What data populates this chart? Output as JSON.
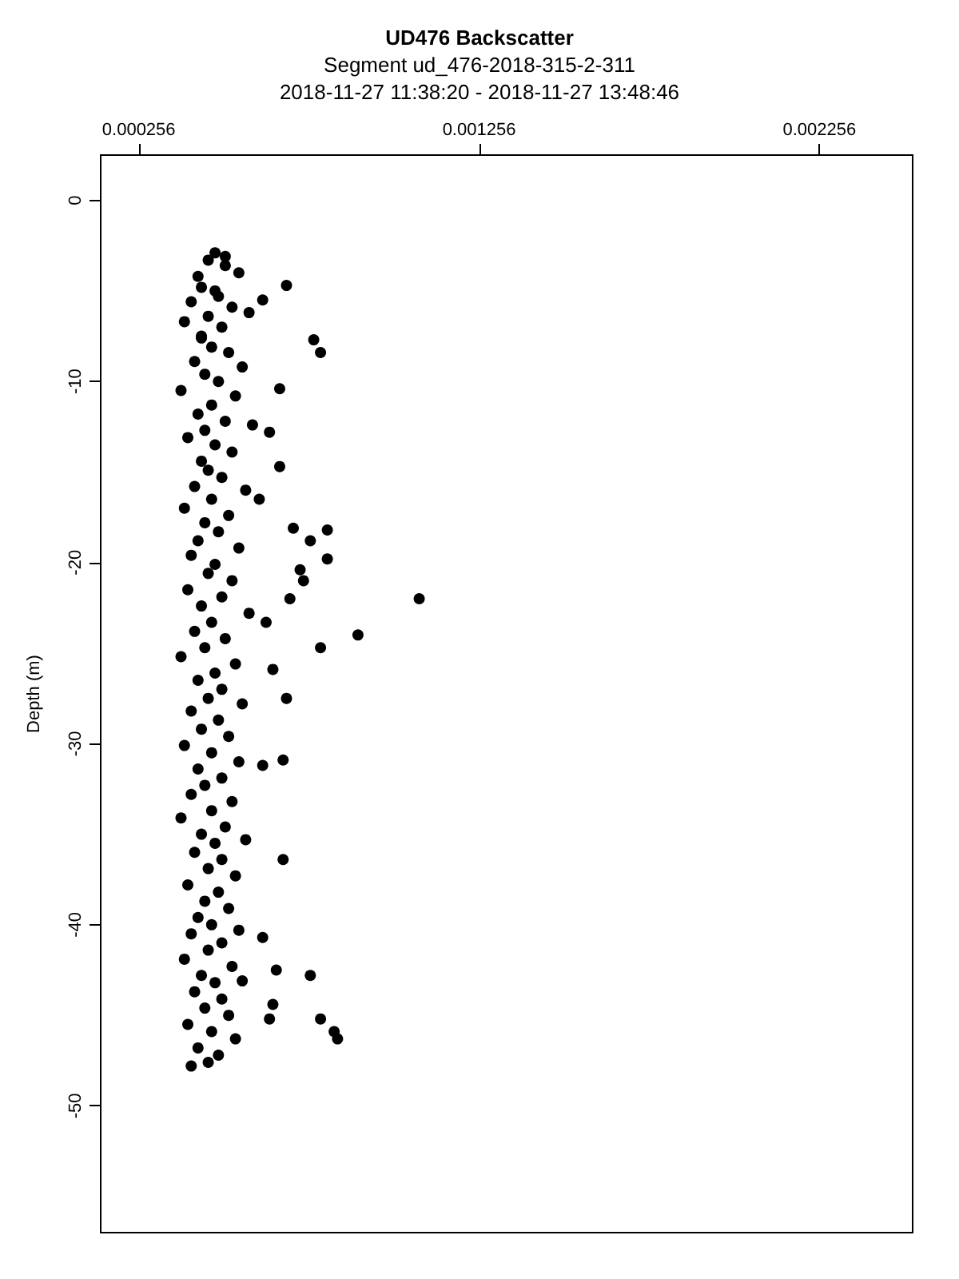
{
  "chart_data": {
    "type": "scatter",
    "title": "UD476 Backscatter",
    "subtitle": "Segment ud_476-2018-315-2-311\n2018-11-27 11:38:20 - 2018-11-27 13:48:46",
    "ylabel": "Depth (m)",
    "xlim": [
      0.000144,
      0.00253
    ],
    "xticks": [
      0.000256,
      0.001256,
      0.002256
    ],
    "ylim": [
      -57,
      2.5
    ],
    "yticks": [
      0,
      -10,
      -20,
      -30,
      -40,
      -50
    ],
    "marker": "circle",
    "grid": false,
    "series": [
      {
        "color": "#000000",
        "x": [
          0.00048,
          0.00046,
          0.00051,
          0.00043,
          0.00055,
          0.00044,
          0.00049,
          0.00041,
          0.00053,
          0.00046,
          0.00039,
          0.0005,
          0.00058,
          0.00044,
          0.00047,
          0.00052,
          0.00042,
          0.00056,
          0.00045,
          0.00049,
          0.00038,
          0.00054,
          0.00047,
          0.00043,
          0.00051,
          0.00045,
          0.00059,
          0.0004,
          0.00048,
          0.00053,
          0.00044,
          0.00046,
          0.0005,
          0.00042,
          0.00057,
          0.00047,
          0.00039,
          0.00052,
          0.00045,
          0.00049,
          0.00043,
          0.00055,
          0.00041,
          0.00048,
          0.00046,
          0.00053,
          0.0004,
          0.0005,
          0.00044,
          0.00058,
          0.00047,
          0.00042,
          0.00051,
          0.00045,
          0.00038,
          0.00054,
          0.00048,
          0.00043,
          0.0005,
          0.00046,
          0.00056,
          0.00041,
          0.00049,
          0.00044,
          0.00052,
          0.00039,
          0.00047,
          0.00055,
          0.00043,
          0.0005,
          0.00045,
          0.00041,
          0.00053,
          0.00047,
          0.00038,
          0.00051,
          0.00044,
          0.00057,
          0.00048,
          0.00042,
          0.0005,
          0.00046,
          0.00054,
          0.0004,
          0.00049,
          0.00045,
          0.00052,
          0.00043,
          0.00047,
          0.00055,
          0.00041,
          0.0005,
          0.00046,
          0.00039,
          0.00053,
          0.00044,
          0.00048,
          0.00056,
          0.00042,
          0.0005,
          0.00045,
          0.00052,
          0.0004,
          0.00047,
          0.00054,
          0.00043,
          0.00049,
          0.00046,
          0.00041,
          0.00051,
          0.00048,
          0.00044,
          0.00069,
          0.00062,
          0.00077,
          0.00079,
          0.00067,
          0.00064,
          0.00067,
          0.00061,
          0.00071,
          0.00081,
          0.00076,
          0.00081,
          0.00073,
          0.00074,
          0.0007,
          0.00063,
          0.00108,
          0.0009,
          0.00079,
          0.00065,
          0.00069,
          0.00068,
          0.00062,
          0.00068,
          0.00062,
          0.00066,
          0.00064,
          0.00065,
          0.00083,
          0.00084,
          0.00079,
          0.00076
        ],
        "values": [
          -2.9,
          -3.3,
          -3.6,
          -4.2,
          -4.0,
          -4.8,
          -5.3,
          -5.6,
          -5.9,
          -6.4,
          -6.7,
          -7.0,
          -6.2,
          -7.6,
          -8.1,
          -8.4,
          -8.9,
          -9.2,
          -9.6,
          -10.0,
          -10.5,
          -10.8,
          -11.3,
          -11.8,
          -12.2,
          -12.7,
          -12.4,
          -13.1,
          -13.5,
          -13.9,
          -14.4,
          -14.9,
          -15.3,
          -15.8,
          -16.0,
          -16.5,
          -17.0,
          -17.4,
          -17.8,
          -18.3,
          -18.8,
          -19.2,
          -19.6,
          -20.1,
          -20.6,
          -21.0,
          -21.5,
          -21.9,
          -22.4,
          -22.8,
          -23.3,
          -23.8,
          -24.2,
          -24.7,
          -25.2,
          -25.6,
          -26.1,
          -26.5,
          -27.0,
          -27.5,
          -27.8,
          -28.2,
          -28.7,
          -29.2,
          -29.6,
          -30.1,
          -30.5,
          -31.0,
          -31.4,
          -31.9,
          -32.3,
          -32.8,
          -33.2,
          -33.7,
          -34.1,
          -34.6,
          -35.0,
          -35.3,
          -35.5,
          -36.0,
          -36.4,
          -36.9,
          -37.3,
          -37.8,
          -38.2,
          -38.7,
          -39.1,
          -39.6,
          -40.0,
          -40.3,
          -40.5,
          -41.0,
          -41.4,
          -41.9,
          -42.3,
          -42.8,
          -43.2,
          -43.1,
          -43.7,
          -44.1,
          -44.6,
          -45.0,
          -45.5,
          -45.9,
          -46.3,
          -46.8,
          -47.2,
          -47.6,
          -47.8,
          -3.1,
          -5.0,
          -7.5,
          -4.7,
          -5.5,
          -7.7,
          -8.4,
          -10.4,
          -12.8,
          -14.7,
          -16.5,
          -18.1,
          -18.2,
          -18.8,
          -19.8,
          -20.4,
          -21.0,
          -22.0,
          -23.3,
          -22.0,
          -24.0,
          -24.7,
          -25.9,
          -27.5,
          -30.9,
          -31.2,
          -36.4,
          -40.7,
          -42.5,
          -45.2,
          -44.4,
          -45.9,
          -46.3,
          -45.2,
          -42.8
        ]
      }
    ]
  }
}
